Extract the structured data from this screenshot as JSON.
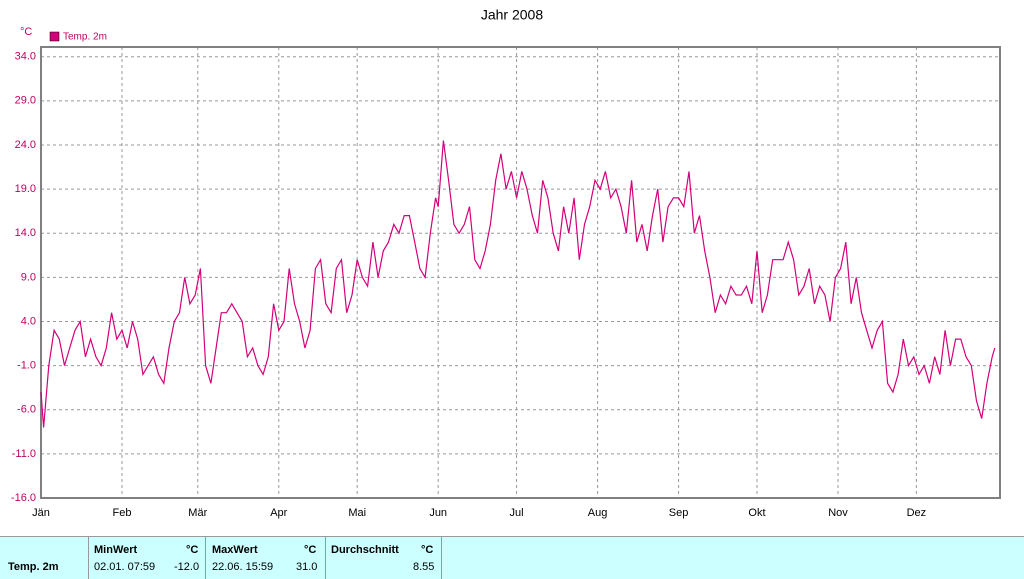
{
  "chart_data": {
    "type": "line",
    "title": "Jahr 2008",
    "y_unit": "°C",
    "x": [
      1,
      2,
      4,
      6,
      8,
      10,
      12,
      14,
      16,
      18,
      20,
      22,
      24,
      26,
      28,
      30,
      32,
      34,
      36,
      38,
      40,
      42,
      44,
      46,
      48,
      50,
      52,
      54,
      56,
      58,
      60,
      62,
      64,
      66,
      68,
      70,
      72,
      74,
      76,
      78,
      80,
      82,
      84,
      86,
      88,
      90,
      92,
      94,
      96,
      98,
      100,
      102,
      104,
      106,
      108,
      110,
      112,
      114,
      116,
      118,
      120,
      122,
      124,
      126,
      128,
      130,
      132,
      134,
      136,
      138,
      140,
      142,
      144,
      146,
      148,
      150,
      152,
      153,
      155,
      157,
      159,
      161,
      163,
      165,
      167,
      169,
      171,
      173,
      175,
      177,
      179,
      181,
      183,
      185,
      187,
      189,
      191,
      193,
      195,
      197,
      199,
      201,
      203,
      205,
      207,
      209,
      211,
      213,
      215,
      217,
      219,
      221,
      223,
      225,
      227,
      229,
      231,
      233,
      235,
      237,
      239,
      241,
      243,
      245,
      247,
      249,
      251,
      253,
      255,
      257,
      259,
      261,
      263,
      265,
      267,
      269,
      271,
      273,
      275,
      277,
      279,
      281,
      283,
      285,
      287,
      289,
      291,
      293,
      295,
      297,
      299,
      301,
      303,
      305,
      307,
      309,
      311,
      313,
      315,
      317,
      319,
      321,
      323,
      325,
      327,
      329,
      331,
      333,
      335,
      337,
      339,
      341,
      343,
      345,
      347,
      349,
      351,
      353,
      355,
      357,
      359,
      361,
      363,
      365,
      366
    ],
    "series": [
      {
        "name": "Temp. 2m",
        "color": "#d4007a",
        "values": [
          -4,
          -8,
          -1,
          3,
          2,
          -1,
          1,
          3,
          4,
          0,
          2,
          0,
          -1,
          1,
          5,
          2,
          3,
          1,
          4,
          2,
          -2,
          -1,
          0,
          -2,
          -3,
          1,
          4,
          5,
          9,
          6,
          7,
          10,
          -1,
          -3,
          1,
          5,
          5,
          6,
          5,
          4,
          0,
          1,
          -1,
          -2,
          0,
          6,
          3,
          4,
          10,
          6,
          4,
          1,
          3,
          10,
          11,
          6,
          5,
          10,
          11,
          5,
          7,
          11,
          9,
          8,
          13,
          9,
          12,
          13,
          15,
          14,
          16,
          16,
          13,
          10,
          9,
          14,
          18,
          17,
          24.5,
          20,
          15,
          14,
          15,
          17,
          11,
          10,
          12,
          15,
          20,
          23,
          19,
          21,
          18,
          21,
          19,
          16,
          14,
          20,
          18,
          14,
          12,
          17,
          14,
          18,
          11,
          15,
          17,
          20,
          19,
          21,
          18,
          19,
          17,
          14,
          20,
          13,
          15,
          12,
          16,
          19,
          13,
          17,
          18,
          18,
          17,
          21,
          14,
          16,
          12,
          9,
          5,
          7,
          6,
          8,
          7,
          7,
          8,
          6,
          12,
          5,
          7,
          11,
          11,
          11,
          13,
          11,
          7,
          8,
          10,
          6,
          8,
          7,
          4,
          9,
          10,
          13,
          6,
          9,
          5,
          3,
          1,
          3,
          4,
          -3,
          -4,
          -2,
          2,
          -1,
          0,
          -2,
          -1,
          -3,
          0,
          -2,
          3,
          -1,
          2,
          2,
          0,
          -1,
          -5,
          -7,
          -3,
          0,
          1
        ]
      }
    ],
    "xlim": [
      1,
      368
    ],
    "xticks": [
      {
        "value": 1,
        "label": "Jän"
      },
      {
        "value": 32,
        "label": "Feb"
      },
      {
        "value": 61,
        "label": "Mär"
      },
      {
        "value": 92,
        "label": "Apr"
      },
      {
        "value": 122,
        "label": "Mai"
      },
      {
        "value": 153,
        "label": "Jun"
      },
      {
        "value": 183,
        "label": "Jul"
      },
      {
        "value": 214,
        "label": "Aug"
      },
      {
        "value": 245,
        "label": "Sep"
      },
      {
        "value": 275,
        "label": "Okt"
      },
      {
        "value": 306,
        "label": "Nov"
      },
      {
        "value": 336,
        "label": "Dez"
      }
    ],
    "ylim": [
      -16,
      35.1
    ],
    "yticks": [
      {
        "value": -16,
        "label": "-16.0"
      },
      {
        "value": -11,
        "label": "-11.0"
      },
      {
        "value": -6,
        "label": "-6.0"
      },
      {
        "value": -1,
        "label": "-1.0"
      },
      {
        "value": 4,
        "label": "4.0"
      },
      {
        "value": 9,
        "label": "9.0"
      },
      {
        "value": 14,
        "label": "14.0"
      },
      {
        "value": 19,
        "label": "19.0"
      },
      {
        "value": 24,
        "label": "24.0"
      },
      {
        "value": 29,
        "label": "29.0"
      },
      {
        "value": 34,
        "label": "34.0"
      }
    ],
    "grid": true
  },
  "table": {
    "row_label": "Temp. 2m",
    "columns": [
      {
        "header": "MinWert",
        "unit": "°C",
        "time": "02.01.  07:59",
        "value": "-12.0"
      },
      {
        "header": "MaxWert",
        "unit": "°C",
        "time": "22.06.  15:59",
        "value": "31.0"
      },
      {
        "header": "Durchschnitt",
        "unit": "°C",
        "value": "8.55"
      }
    ]
  }
}
